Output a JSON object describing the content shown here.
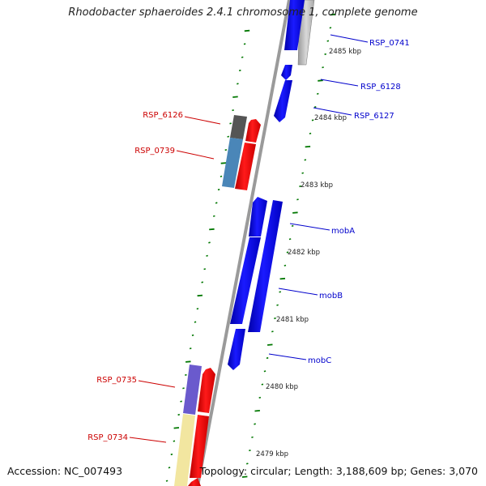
{
  "title": "Rhodobacter sphaeroides 2.4.1 chromosome 1, complete genome",
  "footer": {
    "accession": "Accession: NC_007493",
    "topology": "Topology: circular; Length: 3,188,609 bp; Genes: 3,070"
  },
  "scale_labels": [
    "2485 kbp",
    "2484 kbp",
    "2483 kbp",
    "2482 kbp",
    "2481 kbp",
    "2480 kbp",
    "2479 kbp"
  ],
  "genes_reverse_strand": [
    "RSP_6126",
    "RSP_0739",
    "RSP_0735",
    "RSP_0734"
  ],
  "genes_forward_strand": [
    "RSP_0741",
    "RSP_6128",
    "RSP_6127",
    "mobA",
    "mobB",
    "mobC"
  ],
  "colors": {
    "forward_gene": "#0000ee",
    "reverse_gene": "#ee0000",
    "forward_label": "#0000cc",
    "reverse_label": "#cc0000",
    "ticks": "#007700",
    "backbone": "#999999",
    "feature_gray": "#bbbbbb",
    "feature_dark": "#555555",
    "feature_steelblue": "#4a86b8",
    "feature_purple": "#6a5acd",
    "feature_khaki": "#f2e6a0"
  }
}
